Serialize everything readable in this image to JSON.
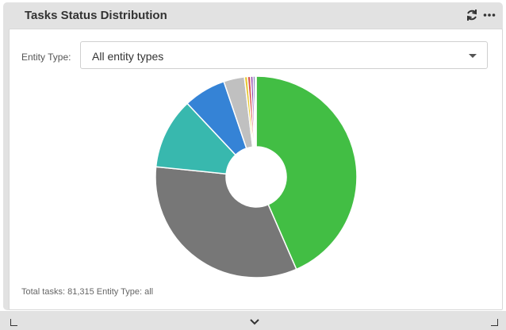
{
  "widget": {
    "title": "Tasks Status Distribution",
    "refresh_icon": "refresh-icon",
    "more_icon": "more-options-icon"
  },
  "filter": {
    "label": "Entity Type:",
    "selected": "All entity types"
  },
  "footer": {
    "text": "Total tasks: 81,315 Entity Type: all"
  },
  "chart_data": {
    "type": "pie",
    "donut": true,
    "title": "",
    "slices": [
      {
        "value": 44.2,
        "color": "#42be44"
      },
      {
        "value": 33.7,
        "color": "#777777"
      },
      {
        "value": 11.6,
        "color": "#38b8ae"
      },
      {
        "value": 6.9,
        "color": "#3583d6"
      },
      {
        "value": 3.4,
        "color": "#c0c0c0"
      },
      {
        "value": 0.5,
        "color": "#e8c832"
      },
      {
        "value": 0.5,
        "color": "#d9534f"
      },
      {
        "value": 0.4,
        "color": "#8e44ad"
      },
      {
        "value": 0.3,
        "color": "#2c2c8c"
      },
      {
        "value": 0.2,
        "color": "#f0a0c8"
      }
    ]
  }
}
